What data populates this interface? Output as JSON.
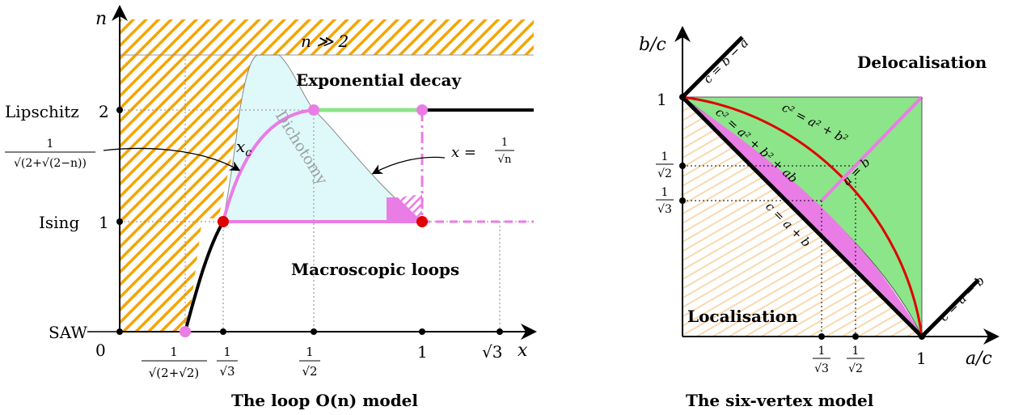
{
  "left_panel": {
    "caption": "The loop O(n) model",
    "axis_x_label": "x",
    "axis_y_label": "n",
    "origin_label": "0",
    "y_ticks": {
      "lipschitz": "Lipschitz",
      "two": "2",
      "ising": "Ising",
      "one": "1",
      "saw": "SAW"
    },
    "x_ticks": {
      "one": "1",
      "sqrt3": "√3",
      "frac_num": "1",
      "saw_den": "√(2+√2)",
      "sqrt3_den": "√3",
      "sqrt2_den": "√2"
    },
    "left_frac_num": "1",
    "left_frac_den": "√(2+√(2−n))",
    "regions": {
      "n_large": "n ≫ 2",
      "exp_decay": "Exponential decay",
      "macro_loops": "Macroscopic loops",
      "dichotomy": "Dichotomy"
    },
    "curve_label": "x",
    "curve_label_sub": "c",
    "line_label": "x = 1/√n",
    "line_label_lhs": "x = ",
    "line_label_frac_den": "√n"
  },
  "right_panel": {
    "caption": "The six-vertex model",
    "axis_x_label": "a/c",
    "axis_y_label": "b/c",
    "regions": {
      "deloc": "Delocalisation",
      "loc": "Localisation"
    },
    "ticks": {
      "one_x": "1",
      "one_y": "1",
      "frac_num": "1",
      "sqrt2": "√2",
      "sqrt3": "√3"
    },
    "line_labels": {
      "c_b_minus_a": "c = b − a",
      "c_a_minus_b": "c = a − b",
      "c_a_plus_b": "c = a + b",
      "a_eq_b": "a = b",
      "circle": "c² = a² + b²",
      "ellipse": "c² = a² + b² + ab"
    }
  },
  "colors": {
    "orange_hatch": "#f4a500",
    "light_cyan": "#dff9fb",
    "pink": "#ea7ce6",
    "green": "#8de58a",
    "red": "#e00000",
    "light_orange_hatch": "#f8d9b0"
  }
}
